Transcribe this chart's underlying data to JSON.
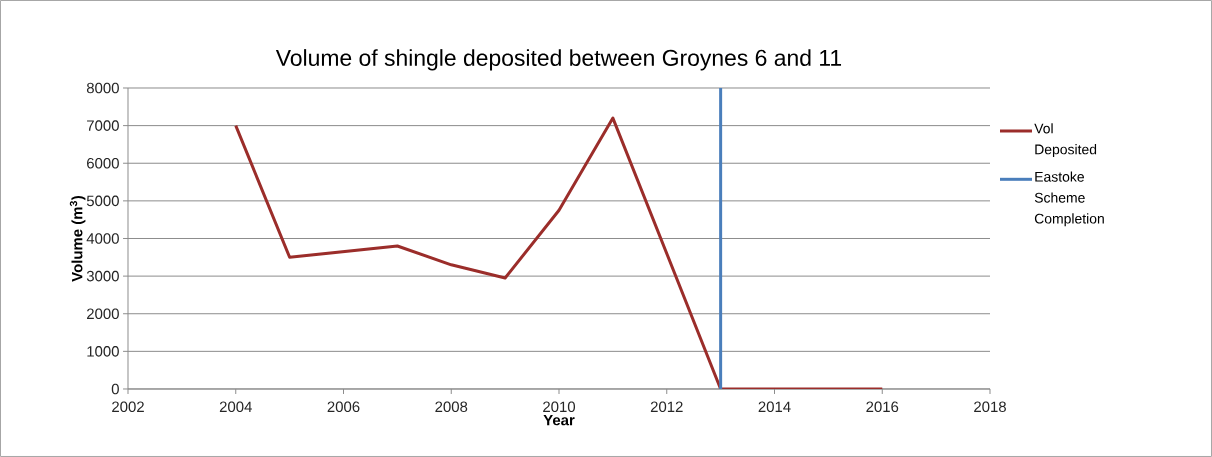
{
  "chart_data": {
    "type": "line",
    "title": "Volume of shingle deposited between Groynes 6 and 11",
    "xlabel": "Year",
    "ylabel": "Volume (m$^{3}$)",
    "x": [
      2004,
      2005,
      2006,
      2007,
      2008,
      2009,
      2010,
      2011,
      2012,
      2013,
      2014,
      2015,
      2016
    ],
    "series": [
      {
        "name": "Vol Deposited",
        "color": "#9b2d2a",
        "values": [
          7000,
          3500,
          3650,
          3800,
          3300,
          2950,
          4750,
          7200,
          3600,
          0,
          0,
          0,
          0
        ]
      },
      {
        "name": "Eastoke Scheme Completion",
        "color": "#4a7ebb",
        "x": [
          2013,
          2013
        ],
        "values": [
          0,
          8000
        ]
      }
    ],
    "xlim": [
      2002,
      2018
    ],
    "xticks": [
      2002,
      2004,
      2006,
      2008,
      2010,
      2012,
      2014,
      2016,
      2018
    ],
    "ylim": [
      0,
      8000
    ],
    "yticks": [
      0,
      1000,
      2000,
      3000,
      4000,
      5000,
      6000,
      7000,
      8000
    ],
    "grid": "y",
    "legend": "right",
    "marker": "none",
    "line_style": "solid"
  }
}
